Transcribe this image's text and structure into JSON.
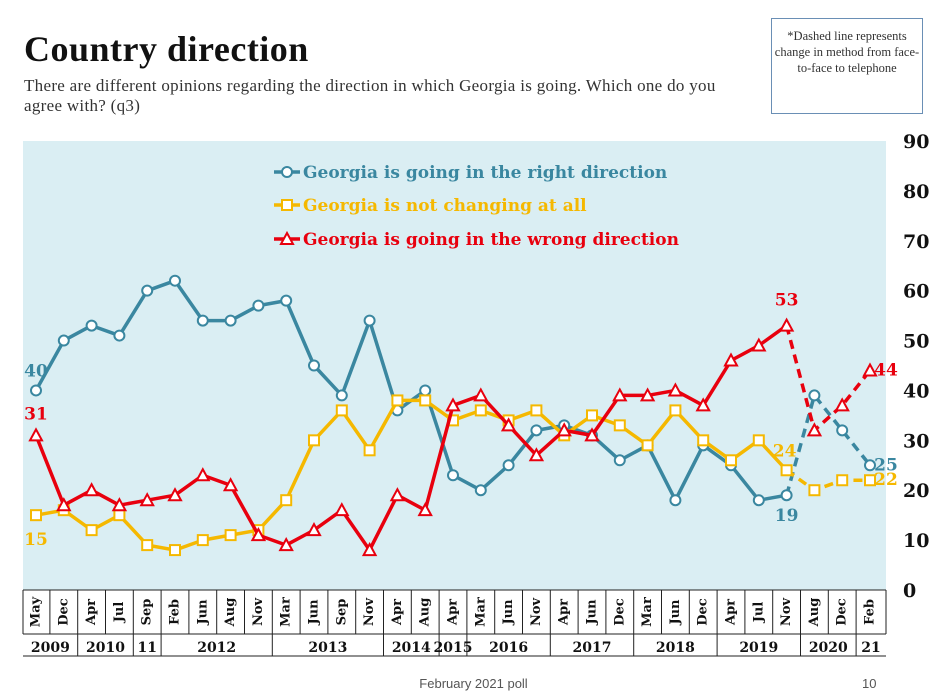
{
  "title": "Country direction",
  "subtitle": "There are different opinions regarding the direction in which Georgia is going. Which one do you agree with? (q3)",
  "note": "*Dashed line represents change in method from face-to-face to telephone",
  "footer": "February 2021 poll",
  "page_number": "10",
  "colors": {
    "right": "#3a87a0",
    "same": "#f5b800",
    "wrong": "#e8000e",
    "plot_bg": "#daeef3"
  },
  "chart_data": {
    "type": "line",
    "title": "Country direction",
    "ylim": [
      0,
      90
    ],
    "yticks": [
      "0",
      "10",
      "20",
      "30",
      "40",
      "50",
      "60",
      "70",
      "80",
      "90"
    ],
    "categories": [
      "May",
      "Dec",
      "Apr",
      "Jul",
      "Sep",
      "Feb",
      "Jun",
      "Aug",
      "Nov",
      "Mar",
      "Jun",
      "Sep",
      "Nov",
      "Apr",
      "Aug",
      "Apr",
      "Mar",
      "Jun",
      "Nov",
      "Apr",
      "Jun",
      "Dec",
      "Mar",
      "Jun",
      "Dec",
      "Apr",
      "Jul",
      "Nov",
      "Aug",
      "Dec",
      "Feb"
    ],
    "year_groups": [
      {
        "label": "2009",
        "count": 2
      },
      {
        "label": "2010",
        "count": 2
      },
      {
        "label": "11",
        "count": 1
      },
      {
        "label": "2012",
        "count": 4
      },
      {
        "label": "2013",
        "count": 4
      },
      {
        "label": "2014",
        "count": 2
      },
      {
        "label": "2015",
        "count": 1
      },
      {
        "label": "2016",
        "count": 3
      },
      {
        "label": "2017",
        "count": 3
      },
      {
        "label": "2018",
        "count": 3
      },
      {
        "label": "2019",
        "count": 3
      },
      {
        "label": "2020",
        "count": 2
      },
      {
        "label": "21",
        "count": 1
      }
    ],
    "dashed_from_index": 27,
    "series": [
      {
        "key": "right",
        "name": "Georgia is going in the right direction",
        "marker": "circle",
        "values": [
          40,
          50,
          53,
          51,
          60,
          62,
          54,
          54,
          57,
          58,
          45,
          39,
          54,
          36,
          40,
          23,
          20,
          25,
          32,
          33,
          31,
          26,
          29,
          18,
          29,
          25,
          18,
          19,
          39,
          32,
          25
        ],
        "labels": [
          {
            "index": 0,
            "text": "40"
          },
          {
            "index": 27,
            "text": "19"
          },
          {
            "index": 30,
            "text": "25"
          }
        ]
      },
      {
        "key": "same",
        "name": "Georgia is not changing at all",
        "marker": "square",
        "values": [
          15,
          16,
          12,
          15,
          9,
          8,
          10,
          11,
          12,
          18,
          30,
          36,
          28,
          38,
          38,
          34,
          36,
          34,
          36,
          31,
          35,
          33,
          29,
          36,
          30,
          26,
          30,
          24,
          20,
          22,
          22
        ],
        "labels": [
          {
            "index": 0,
            "text": "15"
          },
          {
            "index": 27,
            "text": "24"
          },
          {
            "index": 30,
            "text": "22"
          }
        ]
      },
      {
        "key": "wrong",
        "name": "Georgia is going in the wrong direction",
        "marker": "triangle",
        "values": [
          31,
          17,
          20,
          17,
          18,
          19,
          23,
          21,
          11,
          9,
          12,
          16,
          8,
          19,
          16,
          37,
          39,
          33,
          27,
          32,
          31,
          39,
          39,
          40,
          37,
          46,
          49,
          53,
          32,
          37,
          44
        ],
        "labels": [
          {
            "index": 0,
            "text": "31"
          },
          {
            "index": 27,
            "text": "53"
          },
          {
            "index": 30,
            "text": "44"
          }
        ]
      }
    ]
  }
}
